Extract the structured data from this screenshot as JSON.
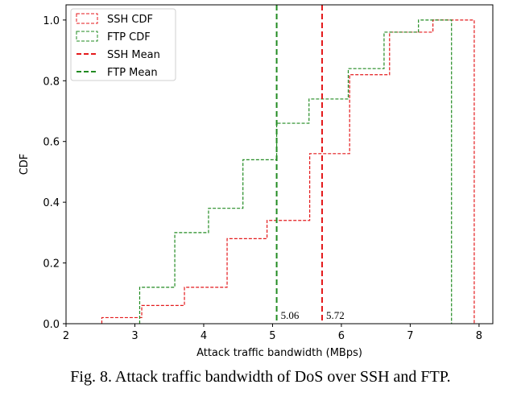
{
  "caption": "Fig. 8.  Attack traffic bandwidth of DoS over SSH and FTP.",
  "chart_data": {
    "type": "line",
    "title": "",
    "xlabel": "Attack traffic bandwidth (MBps)",
    "ylabel": "CDF",
    "xlim": [
      2,
      8.2
    ],
    "ylim": [
      0,
      1.05
    ],
    "xticks": [
      2,
      3,
      4,
      5,
      6,
      7,
      8
    ],
    "yticks": [
      0.0,
      0.2,
      0.4,
      0.6,
      0.8,
      1.0
    ],
    "xtick_labels": [
      "2",
      "3",
      "4",
      "5",
      "6",
      "7",
      "8"
    ],
    "ytick_labels": [
      "0.0",
      "0.2",
      "0.4",
      "0.6",
      "0.8",
      "1.0"
    ],
    "grid": false,
    "legend_position": "top-left",
    "series": [
      {
        "name": "SSH CDF",
        "kind": "step",
        "color": "#e41a1c",
        "x": [
          2.52,
          3.1,
          3.72,
          4.34,
          4.92,
          5.54,
          6.12,
          6.7,
          7.33,
          7.93
        ],
        "y": [
          0.02,
          0.06,
          0.12,
          0.28,
          0.34,
          0.56,
          0.82,
          0.96,
          1.0,
          1.0
        ]
      },
      {
        "name": "FTP CDF",
        "kind": "step",
        "color": "#228b22",
        "x": [
          3.07,
          3.58,
          4.07,
          4.57,
          5.06,
          5.53,
          6.1,
          6.62,
          7.12,
          7.6
        ],
        "y": [
          0.12,
          0.3,
          0.38,
          0.54,
          0.66,
          0.74,
          0.84,
          0.96,
          1.0,
          1.0
        ]
      }
    ],
    "means": [
      {
        "name": "SSH Mean",
        "value": 5.72,
        "label": "5.72",
        "color": "#e41a1c"
      },
      {
        "name": "FTP Mean",
        "value": 5.06,
        "label": "5.06",
        "color": "#228b22"
      }
    ]
  }
}
